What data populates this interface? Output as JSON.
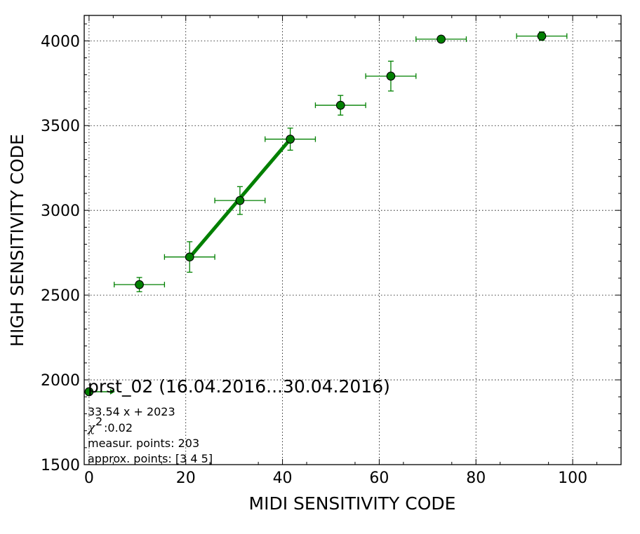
{
  "chart_data": {
    "type": "scatter",
    "xlabel": "MIDI SENSITIVITY CODE",
    "ylabel": "HIGH SENSITIVITY CODE",
    "xlim": [
      -1,
      110
    ],
    "ylim": [
      1500,
      4150
    ],
    "x_ticks": [
      0,
      20,
      40,
      60,
      80,
      100
    ],
    "y_ticks": [
      1500,
      2000,
      2500,
      3000,
      3500,
      4000
    ],
    "grid": true,
    "colors": {
      "series": "#008000",
      "fit": "#008000",
      "marker_edge": "#000000"
    },
    "series": [
      {
        "points": [
          {
            "x": 10.4,
            "y": 2562,
            "xerr": 5.2,
            "yerr": 42
          },
          {
            "x": 20.8,
            "y": 2725,
            "xerr": 5.2,
            "yerr": 90
          },
          {
            "x": 31.2,
            "y": 3058,
            "xerr": 5.2,
            "yerr": 82
          },
          {
            "x": 41.6,
            "y": 3420,
            "xerr": 5.2,
            "yerr": 65
          },
          {
            "x": 52.0,
            "y": 3620,
            "xerr": 5.2,
            "yerr": 58
          },
          {
            "x": 62.4,
            "y": 3792,
            "xerr": 5.2,
            "yerr": 88
          },
          {
            "x": 72.8,
            "y": 4010,
            "xerr": 5.2,
            "yerr": 10
          },
          {
            "x": 93.6,
            "y": 4028,
            "xerr": 5.2,
            "yerr": 25
          }
        ]
      }
    ],
    "fit": {
      "x": [
        20.8,
        41.6
      ],
      "y": [
        2722,
        3420
      ]
    },
    "annotations": {
      "title": "prst_02 (16.04.2016...30.04.2016)",
      "equation": "33.54 x + 2023",
      "chi_symbol": "χ",
      "chi_exp": "2",
      "chi_value": ":0.02",
      "measur_points": "measur. points: 203",
      "approx_points": "approx. points: [3 4 5]"
    },
    "legend_marker": {
      "x": 0,
      "y": 1930
    }
  }
}
